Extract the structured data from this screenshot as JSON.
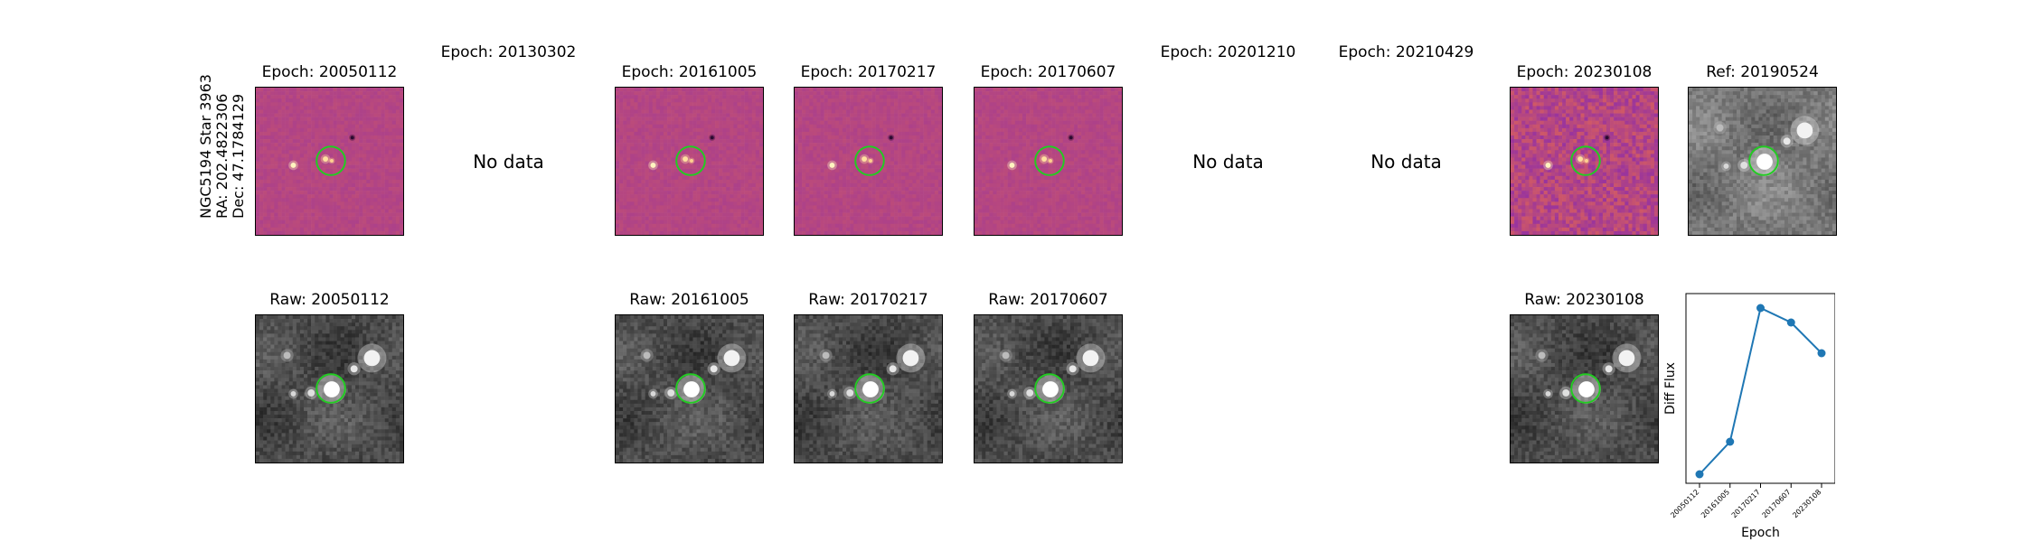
{
  "target_label": [
    "NGC5194 Star 3963",
    "RA: 202.4822306",
    "Dec: 47.1784129"
  ],
  "top_row": [
    {
      "title": "Epoch: 20050112",
      "status": "image",
      "style": "diff"
    },
    {
      "title": "Epoch: 20130302",
      "status": "no-data",
      "message": "No data"
    },
    {
      "title": "Epoch: 20161005",
      "status": "image",
      "style": "diff"
    },
    {
      "title": "Epoch: 20170217",
      "status": "image",
      "style": "diff"
    },
    {
      "title": "Epoch: 20170607",
      "status": "image",
      "style": "diff"
    },
    {
      "title": "Epoch: 20201210",
      "status": "no-data",
      "message": "No data"
    },
    {
      "title": "Epoch: 20210429",
      "status": "no-data",
      "message": "No data"
    },
    {
      "title": "Epoch: 20230108",
      "status": "image",
      "style": "diff-noisy"
    },
    {
      "title": "Ref: 20190524",
      "status": "image",
      "style": "ref"
    }
  ],
  "bottom_row": [
    {
      "title": "Raw: 20050112",
      "column": 0
    },
    {
      "title": "Raw: 20161005",
      "column": 2
    },
    {
      "title": "Raw: 20170217",
      "column": 3
    },
    {
      "title": "Raw: 20170607",
      "column": 4
    },
    {
      "title": "Raw: 20230108",
      "column": 7
    }
  ],
  "colors": {
    "circle": "#22cc22",
    "line": "#1f77b4",
    "diff_base": "#b8457a",
    "raw_base": "#4a4a4a"
  },
  "chart_data": {
    "type": "line",
    "categories": [
      "20050112",
      "20161005",
      "20170217",
      "20170607",
      "20230108"
    ],
    "values": [
      0.05,
      0.23,
      0.97,
      0.89,
      0.72
    ],
    "xlabel": "Epoch",
    "ylabel": "Diff Flux",
    "ylim": [
      0,
      1.05
    ],
    "grid": false
  }
}
